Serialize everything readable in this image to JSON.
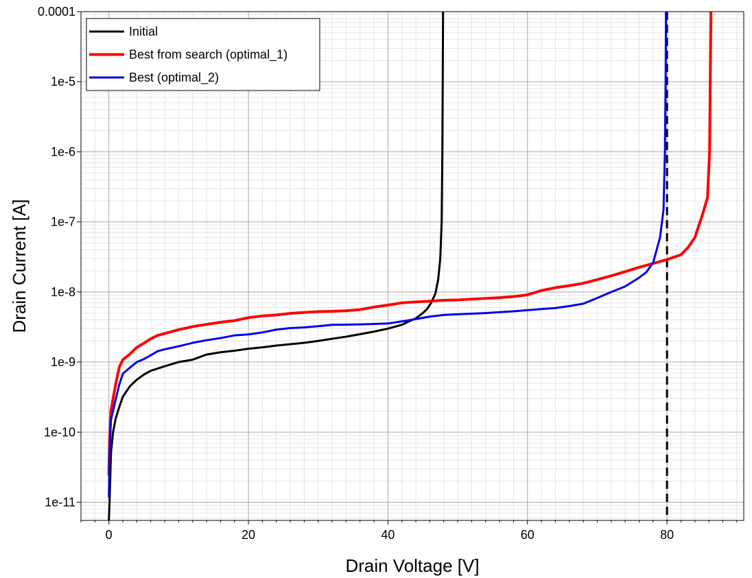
{
  "chart_data": {
    "type": "line",
    "title": "",
    "xlabel": "Drain Voltage [V]",
    "ylabel": "Drain Current [A]",
    "x_scale": "linear",
    "y_scale": "log",
    "xlim": [
      -4,
      91
    ],
    "ylim": [
      5.5e-12,
      0.0001
    ],
    "x_ticks": [
      {
        "value": 0,
        "label": "0"
      },
      {
        "value": 20,
        "label": "20"
      },
      {
        "value": 40,
        "label": "40"
      },
      {
        "value": 60,
        "label": "60"
      },
      {
        "value": 80,
        "label": "80"
      }
    ],
    "y_ticks": [
      {
        "value": 1e-11,
        "label": "1e-11"
      },
      {
        "value": 1e-10,
        "label": "1e-10"
      },
      {
        "value": 1e-09,
        "label": "1e-9"
      },
      {
        "value": 1e-08,
        "label": "1e-8"
      },
      {
        "value": 1e-07,
        "label": "1e-7"
      },
      {
        "value": 1e-06,
        "label": "1e-6"
      },
      {
        "value": 1e-05,
        "label": "1e-5"
      },
      {
        "value": 0.0001,
        "label": "0.0001"
      }
    ],
    "grid": true,
    "legend_position": "top-left",
    "series": [
      {
        "name": "Initial",
        "color": "#000000",
        "width": 3,
        "points": [
          [
            0,
            5.5e-12
          ],
          [
            0.1,
            1e-11
          ],
          [
            0.3,
            5e-11
          ],
          [
            0.6,
            1e-10
          ],
          [
            1,
            1.6e-10
          ],
          [
            1.5,
            2.3e-10
          ],
          [
            2,
            3.2e-10
          ],
          [
            3,
            4.5e-10
          ],
          [
            4,
            5.6e-10
          ],
          [
            5,
            6.6e-10
          ],
          [
            6,
            7.5e-10
          ],
          [
            8,
            8.7e-10
          ],
          [
            10,
            1e-09
          ],
          [
            12,
            1.08e-09
          ],
          [
            14,
            1.28e-09
          ],
          [
            16,
            1.38e-09
          ],
          [
            18,
            1.45e-09
          ],
          [
            20,
            1.55e-09
          ],
          [
            22,
            1.62e-09
          ],
          [
            24,
            1.72e-09
          ],
          [
            26,
            1.8e-09
          ],
          [
            28,
            1.88e-09
          ],
          [
            30,
            2e-09
          ],
          [
            32,
            2.15e-09
          ],
          [
            34,
            2.3e-09
          ],
          [
            36,
            2.5e-09
          ],
          [
            38,
            2.72e-09
          ],
          [
            40,
            3e-09
          ],
          [
            42,
            3.4e-09
          ],
          [
            43,
            3.8e-09
          ],
          [
            44,
            4.2e-09
          ],
          [
            45,
            5e-09
          ],
          [
            45.6,
            5.7e-09
          ],
          [
            46.2,
            7e-09
          ],
          [
            46.8,
            9.5e-09
          ],
          [
            47.2,
            1.5e-08
          ],
          [
            47.5,
            3e-08
          ],
          [
            47.7,
            1e-07
          ],
          [
            47.8,
            1e-06
          ],
          [
            47.85,
            1e-05
          ],
          [
            47.9,
            0.0001
          ]
        ]
      },
      {
        "name": "Best from search (optimal_1)",
        "color": "#ff0000",
        "width": 4,
        "points": [
          [
            0,
            2.5e-11
          ],
          [
            0.1,
            8e-11
          ],
          [
            0.3,
            2e-10
          ],
          [
            0.6,
            3e-10
          ],
          [
            1,
            5e-10
          ],
          [
            1.5,
            8.5e-10
          ],
          [
            2,
            1.08e-09
          ],
          [
            3,
            1.3e-09
          ],
          [
            4,
            1.62e-09
          ],
          [
            5,
            1.85e-09
          ],
          [
            6,
            2.15e-09
          ],
          [
            7,
            2.4e-09
          ],
          [
            8,
            2.55e-09
          ],
          [
            10,
            2.9e-09
          ],
          [
            12,
            3.2e-09
          ],
          [
            14,
            3.45e-09
          ],
          [
            16,
            3.7e-09
          ],
          [
            18,
            3.9e-09
          ],
          [
            20,
            4.3e-09
          ],
          [
            22,
            4.55e-09
          ],
          [
            24,
            4.7e-09
          ],
          [
            26,
            4.95e-09
          ],
          [
            28,
            5.1e-09
          ],
          [
            30,
            5.25e-09
          ],
          [
            32,
            5.3e-09
          ],
          [
            34,
            5.4e-09
          ],
          [
            36,
            5.6e-09
          ],
          [
            38,
            6.1e-09
          ],
          [
            40,
            6.5e-09
          ],
          [
            42,
            7e-09
          ],
          [
            44,
            7.2e-09
          ],
          [
            46,
            7.4e-09
          ],
          [
            48,
            7.6e-09
          ],
          [
            50,
            7.7e-09
          ],
          [
            52,
            7.9e-09
          ],
          [
            54,
            8.1e-09
          ],
          [
            56,
            8.3e-09
          ],
          [
            58,
            8.6e-09
          ],
          [
            60,
            9.1e-09
          ],
          [
            62,
            1.05e-08
          ],
          [
            64,
            1.15e-08
          ],
          [
            66,
            1.23e-08
          ],
          [
            68,
            1.33e-08
          ],
          [
            70,
            1.5e-08
          ],
          [
            72,
            1.7e-08
          ],
          [
            74,
            1.95e-08
          ],
          [
            76,
            2.25e-08
          ],
          [
            78,
            2.55e-08
          ],
          [
            80,
            2.9e-08
          ],
          [
            82,
            3.4e-08
          ],
          [
            83,
            4.3e-08
          ],
          [
            84,
            6e-08
          ],
          [
            85,
            1.2e-07
          ],
          [
            85.8,
            2.2e-07
          ],
          [
            86.1,
            1e-06
          ],
          [
            86.2,
            1e-05
          ],
          [
            86.3,
            0.0001
          ]
        ]
      },
      {
        "name": "Best (optimal_2)",
        "color": "#0000ee",
        "width": 3,
        "points": [
          [
            0,
            1.2e-11
          ],
          [
            0.1,
            5e-11
          ],
          [
            0.3,
            1.5e-10
          ],
          [
            0.6,
            2e-10
          ],
          [
            1,
            3e-10
          ],
          [
            1.5,
            4.8e-10
          ],
          [
            2,
            6.8e-10
          ],
          [
            3,
            8.3e-10
          ],
          [
            4,
            1e-09
          ],
          [
            5,
            1.1e-09
          ],
          [
            6,
            1.25e-09
          ],
          [
            7,
            1.43e-09
          ],
          [
            8,
            1.52e-09
          ],
          [
            10,
            1.68e-09
          ],
          [
            12,
            1.88e-09
          ],
          [
            14,
            2.05e-09
          ],
          [
            16,
            2.2e-09
          ],
          [
            18,
            2.4e-09
          ],
          [
            20,
            2.48e-09
          ],
          [
            22,
            2.65e-09
          ],
          [
            24,
            2.9e-09
          ],
          [
            26,
            3.05e-09
          ],
          [
            28,
            3.12e-09
          ],
          [
            30,
            3.25e-09
          ],
          [
            32,
            3.4e-09
          ],
          [
            34,
            3.42e-09
          ],
          [
            36,
            3.45e-09
          ],
          [
            38,
            3.5e-09
          ],
          [
            40,
            3.55e-09
          ],
          [
            42,
            3.8e-09
          ],
          [
            44,
            4.1e-09
          ],
          [
            46,
            4.45e-09
          ],
          [
            48,
            4.7e-09
          ],
          [
            50,
            4.8e-09
          ],
          [
            52,
            4.9e-09
          ],
          [
            54,
            5e-09
          ],
          [
            56,
            5.15e-09
          ],
          [
            58,
            5.3e-09
          ],
          [
            60,
            5.5e-09
          ],
          [
            62,
            5.7e-09
          ],
          [
            64,
            5.9e-09
          ],
          [
            66,
            6.3e-09
          ],
          [
            68,
            6.8e-09
          ],
          [
            70,
            8.2e-09
          ],
          [
            72,
            1e-08
          ],
          [
            74,
            1.2e-08
          ],
          [
            76,
            1.6e-08
          ],
          [
            77,
            1.9e-08
          ],
          [
            78,
            2.6e-08
          ],
          [
            79,
            6e-08
          ],
          [
            79.5,
            1.5e-07
          ],
          [
            79.7,
            1e-06
          ],
          [
            79.8,
            1e-05
          ],
          [
            79.85,
            0.0001
          ]
        ]
      }
    ],
    "reference_lines": [
      {
        "type": "vertical",
        "x": 80,
        "style": "dashed",
        "color": "#000000"
      }
    ]
  }
}
